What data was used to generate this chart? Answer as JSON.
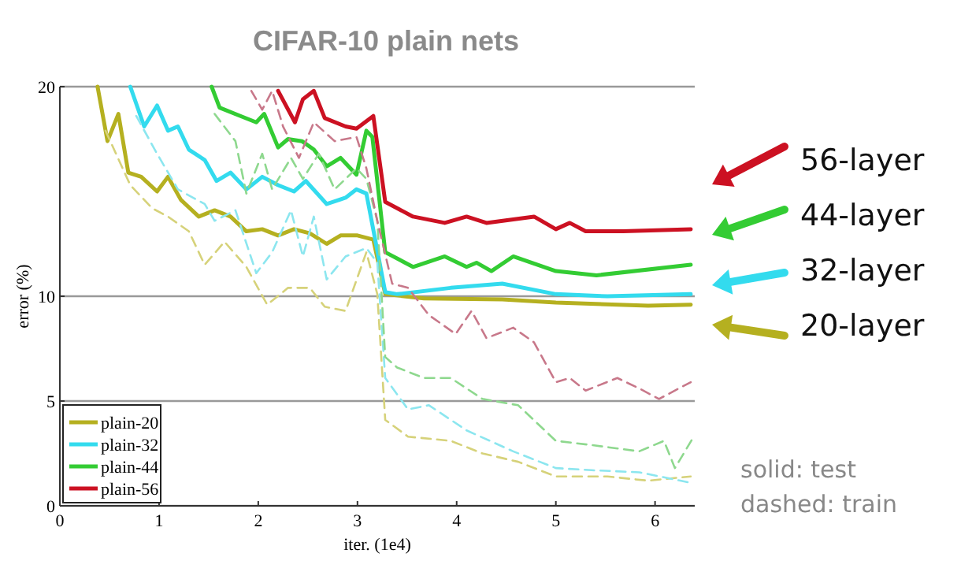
{
  "chart_data": {
    "type": "line",
    "title": "CIFAR-10 plain nets",
    "xlabel": "iter. (1e4)",
    "ylabel": "error (%)",
    "xlim": [
      0,
      6.4
    ],
    "xticks": [
      0,
      1,
      2,
      3,
      4,
      5,
      6
    ],
    "ylim": [
      0,
      20
    ],
    "yticks": [
      0,
      5,
      10,
      20
    ],
    "grid": "y",
    "legend": "bottom left",
    "annotations": [
      "56-layer",
      "44-layer",
      "32-layer",
      "20-layer",
      "solid: test",
      "dashed: train"
    ],
    "series": [
      {
        "name": "plain-20",
        "color": "#b5b020",
        "line_style": "solid",
        "x": [
          0.38,
          0.48,
          0.59,
          0.69,
          0.82,
          0.98,
          1.09,
          1.22,
          1.4,
          1.56,
          1.72,
          1.88,
          2.04,
          2.2,
          2.36,
          2.52,
          2.69,
          2.83,
          3.0,
          3.16,
          3.28,
          3.67,
          4.46,
          5.0,
          5.93,
          6.36
        ],
        "values": [
          20,
          17.4,
          18.7,
          15.9,
          15.7,
          15.0,
          15.7,
          14.6,
          13.8,
          14.1,
          13.8,
          13.1,
          13.2,
          12.9,
          13.2,
          13.0,
          12.5,
          12.9,
          12.9,
          12.7,
          10.1,
          9.9,
          9.85,
          9.7,
          9.55,
          9.6
        ]
      },
      {
        "name": "plain-32",
        "color": "#33dbee",
        "line_style": "solid",
        "x": [
          0.71,
          0.85,
          0.98,
          1.09,
          1.19,
          1.3,
          1.46,
          1.58,
          1.72,
          1.88,
          2.04,
          2.2,
          2.36,
          2.48,
          2.69,
          2.88,
          2.99,
          3.09,
          3.28,
          3.4,
          3.94,
          4.46,
          5.0,
          5.52,
          6.36
        ],
        "values": [
          20,
          18.1,
          19.1,
          17.9,
          18.1,
          17.0,
          16.5,
          15.5,
          15.9,
          15.1,
          15.7,
          15.3,
          15.0,
          15.5,
          14.4,
          14.7,
          15.1,
          14.9,
          10.2,
          10.1,
          10.4,
          10.6,
          10.1,
          10.0,
          10.1
        ]
      },
      {
        "name": "plain-44",
        "color": "#33cc33",
        "line_style": "solid",
        "x": [
          1.53,
          1.61,
          1.82,
          1.98,
          2.06,
          2.2,
          2.3,
          2.44,
          2.56,
          2.69,
          2.83,
          2.99,
          3.09,
          3.15,
          3.28,
          3.56,
          3.88,
          4.1,
          4.2,
          4.35,
          4.57,
          5.0,
          5.41,
          6.36
        ],
        "values": [
          20,
          19.0,
          18.6,
          18.3,
          18.7,
          17.1,
          17.5,
          17.4,
          17.0,
          16.2,
          16.6,
          15.8,
          17.9,
          17.6,
          12.1,
          11.4,
          11.9,
          11.4,
          11.6,
          11.2,
          11.9,
          11.2,
          11.0,
          11.5
        ]
      },
      {
        "name": "plain-56",
        "color": "#cc1122",
        "line_style": "solid",
        "x": [
          2.2,
          2.37,
          2.45,
          2.56,
          2.67,
          2.88,
          2.99,
          3.16,
          3.28,
          3.56,
          3.88,
          4.1,
          4.3,
          4.78,
          5.0,
          5.14,
          5.3,
          5.68,
          6.36
        ],
        "values": [
          19.8,
          18.3,
          19.4,
          19.8,
          18.5,
          18.1,
          18.0,
          18.6,
          14.5,
          13.8,
          13.5,
          13.8,
          13.5,
          13.8,
          13.2,
          13.5,
          13.1,
          13.1,
          13.2
        ]
      },
      {
        "color": "#d6d27a",
        "line_style": "dashed",
        "x": [
          0.46,
          0.71,
          0.93,
          1.09,
          1.3,
          1.46,
          1.66,
          1.88,
          2.09,
          2.3,
          2.52,
          2.67,
          2.88,
          3.09,
          3.2,
          3.28,
          3.51,
          3.94,
          4.26,
          4.62,
          5.0,
          5.52,
          5.93,
          6.36
        ],
        "values": [
          17.9,
          15.3,
          14.2,
          13.8,
          13.1,
          11.5,
          12.6,
          11.4,
          9.6,
          10.4,
          10.4,
          9.5,
          9.3,
          12.1,
          10.1,
          4.1,
          3.3,
          3.1,
          2.5,
          2.1,
          1.4,
          1.4,
          1.2,
          1.4
        ]
      },
      {
        "color": "#8ce6ef",
        "line_style": "dashed",
        "x": [
          0.77,
          0.98,
          1.19,
          1.46,
          1.56,
          1.77,
          1.98,
          2.14,
          2.33,
          2.45,
          2.56,
          2.69,
          2.88,
          3.09,
          3.2,
          3.28,
          3.51,
          3.72,
          4.1,
          4.57,
          5.0,
          5.36,
          5.84,
          6.36
        ],
        "values": [
          18.6,
          16.8,
          15.1,
          14.4,
          13.6,
          14.1,
          11.1,
          12.1,
          14.1,
          11.9,
          13.8,
          10.8,
          11.9,
          12.3,
          11.6,
          6.1,
          4.6,
          4.8,
          3.6,
          2.6,
          1.8,
          1.7,
          1.6,
          1.1
        ]
      },
      {
        "color": "#8ed88e",
        "line_style": "dashed",
        "x": [
          1.56,
          1.77,
          1.88,
          2.04,
          2.14,
          2.33,
          2.45,
          2.61,
          2.77,
          2.99,
          3.09,
          3.2,
          3.28,
          3.4,
          3.67,
          3.94,
          4.26,
          4.62,
          5.0,
          5.36,
          5.84,
          6.09,
          6.2,
          6.39
        ],
        "values": [
          18.7,
          17.4,
          14.9,
          16.8,
          15.1,
          16.6,
          15.6,
          16.8,
          15.1,
          16.1,
          15.6,
          13.6,
          7.1,
          6.6,
          6.1,
          6.1,
          5.1,
          4.8,
          3.1,
          2.9,
          2.6,
          3.1,
          1.8,
          3.3
        ]
      },
      {
        "color": "#c8788a",
        "line_style": "dashed",
        "x": [
          1.93,
          2.04,
          2.14,
          2.25,
          2.41,
          2.56,
          2.77,
          2.99,
          3.09,
          3.2,
          3.35,
          3.51,
          3.72,
          3.99,
          4.15,
          4.3,
          4.57,
          4.78,
          5.0,
          5.14,
          5.3,
          5.62,
          5.84,
          6.04,
          6.36
        ],
        "values": [
          19.8,
          18.9,
          19.8,
          18.1,
          16.6,
          18.3,
          17.4,
          17.6,
          16.1,
          13.6,
          10.6,
          10.4,
          9.1,
          8.2,
          9.3,
          8.0,
          8.5,
          7.8,
          5.9,
          6.1,
          5.5,
          6.1,
          5.6,
          5.1,
          5.9
        ]
      }
    ]
  }
}
